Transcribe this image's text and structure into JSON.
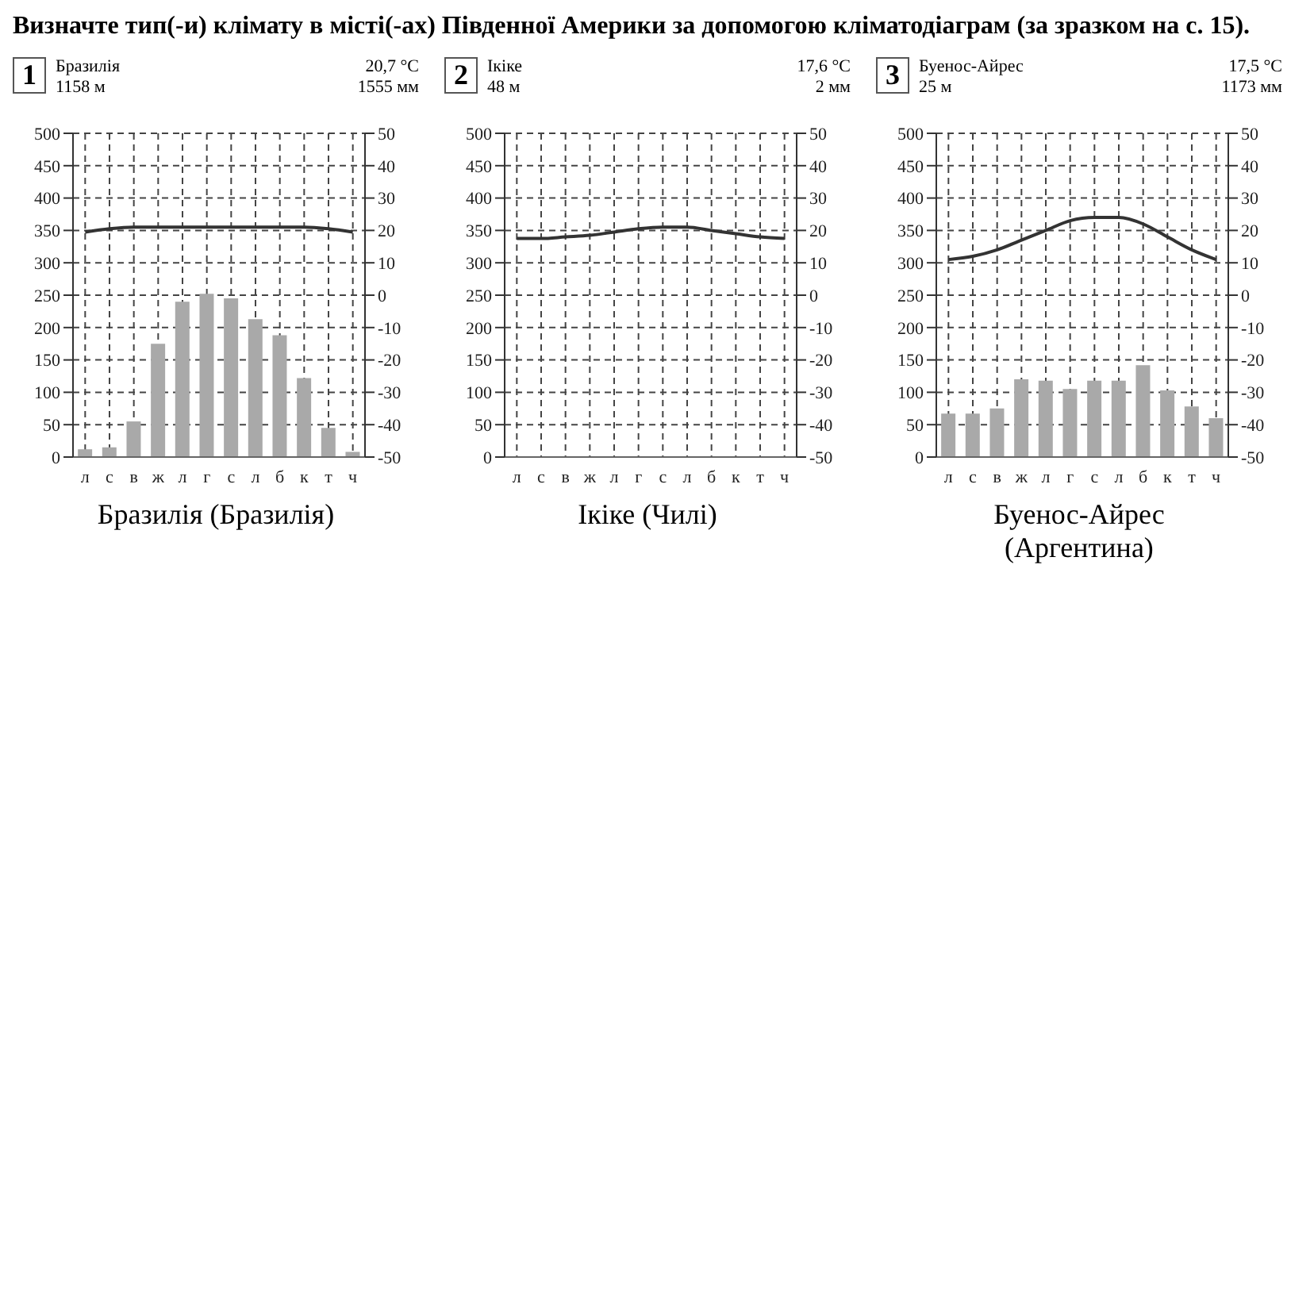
{
  "chart_data": [
    {
      "type": "bar",
      "title": "Визначте тип(-и) клімату в місті(-ах) Південної Америки за допомогою кліматодіаграм (за зразком на с. 15).",
      "xlabel": "Бразилія (Бразилія)",
      "annotations": [
        "1",
        "Бразилія",
        "1158 м",
        "20,7 °C",
        "1555 мм"
      ],
      "categories": [
        "л",
        "с",
        "в",
        "ж",
        "л",
        "г",
        "с",
        "л",
        "б",
        "к",
        "т",
        "ч"
      ],
      "ylim": [
        0,
        500
      ],
      "yticks": [
        0,
        50,
        100,
        150,
        200,
        250,
        300,
        350,
        400,
        450,
        500
      ],
      "y2lim": [
        -50,
        50
      ],
      "y2ticks": [
        -50,
        -40,
        -30,
        -20,
        -10,
        0,
        10,
        20,
        30,
        40,
        50
      ],
      "grid": true,
      "legend": false,
      "series": [
        {
          "color": "#a9a9a9",
          "values": [
            12,
            15,
            55,
            175,
            240,
            252,
            245,
            213,
            188,
            122,
            45,
            8
          ]
        },
        {
          "type": "line",
          "axis": "y2",
          "color": "#333333",
          "values": [
            19.5,
            20.5,
            21,
            21,
            21,
            21,
            21,
            21,
            21,
            21,
            20.5,
            19.5
          ]
        }
      ]
    },
    {
      "type": "bar",
      "xlabel": "Ікіке (Чилі)",
      "annotations": [
        "2",
        "Ікіке",
        "48 м",
        "17,6 °C",
        "2 мм"
      ],
      "categories": [
        "л",
        "с",
        "в",
        "ж",
        "л",
        "г",
        "с",
        "л",
        "б",
        "к",
        "т",
        "ч"
      ],
      "ylim": [
        0,
        500
      ],
      "yticks": [
        0,
        50,
        100,
        150,
        200,
        250,
        300,
        350,
        400,
        450,
        500
      ],
      "y2lim": [
        -50,
        50
      ],
      "y2ticks": [
        -50,
        -40,
        -30,
        -20,
        -10,
        0,
        10,
        20,
        30,
        40,
        50
      ],
      "grid": true,
      "legend": false,
      "series": [
        {
          "color": "#a9a9a9",
          "values": [
            0,
            0,
            0,
            0,
            0,
            0,
            0,
            0,
            0,
            0,
            0,
            0
          ]
        },
        {
          "type": "line",
          "axis": "y2",
          "color": "#333333",
          "values": [
            17.5,
            17.5,
            18,
            18.5,
            19.5,
            20.5,
            21,
            21,
            20,
            19,
            18,
            17.5
          ]
        }
      ]
    },
    {
      "type": "bar",
      "xlabel": "Буенос-Айрес (Аргентина)",
      "annotations": [
        "3",
        "Буенос-Айрес",
        "25 м",
        "17,5 °C",
        "1173 мм"
      ],
      "categories": [
        "л",
        "с",
        "в",
        "ж",
        "л",
        "г",
        "с",
        "л",
        "б",
        "к",
        "т",
        "ч"
      ],
      "ylim": [
        0,
        500
      ],
      "yticks": [
        0,
        50,
        100,
        150,
        200,
        250,
        300,
        350,
        400,
        450,
        500
      ],
      "y2lim": [
        -50,
        50
      ],
      "y2ticks": [
        -50,
        -40,
        -30,
        -20,
        -10,
        0,
        10,
        20,
        30,
        40,
        50
      ],
      "grid": true,
      "legend": false,
      "series": [
        {
          "color": "#a9a9a9",
          "values": [
            67,
            67,
            75,
            120,
            118,
            105,
            118,
            118,
            142,
            103,
            78,
            60
          ]
        },
        {
          "type": "line",
          "axis": "y2",
          "color": "#333333",
          "values": [
            11,
            12,
            14,
            17,
            20,
            23,
            24,
            24,
            22,
            18,
            14,
            11
          ]
        }
      ]
    }
  ]
}
